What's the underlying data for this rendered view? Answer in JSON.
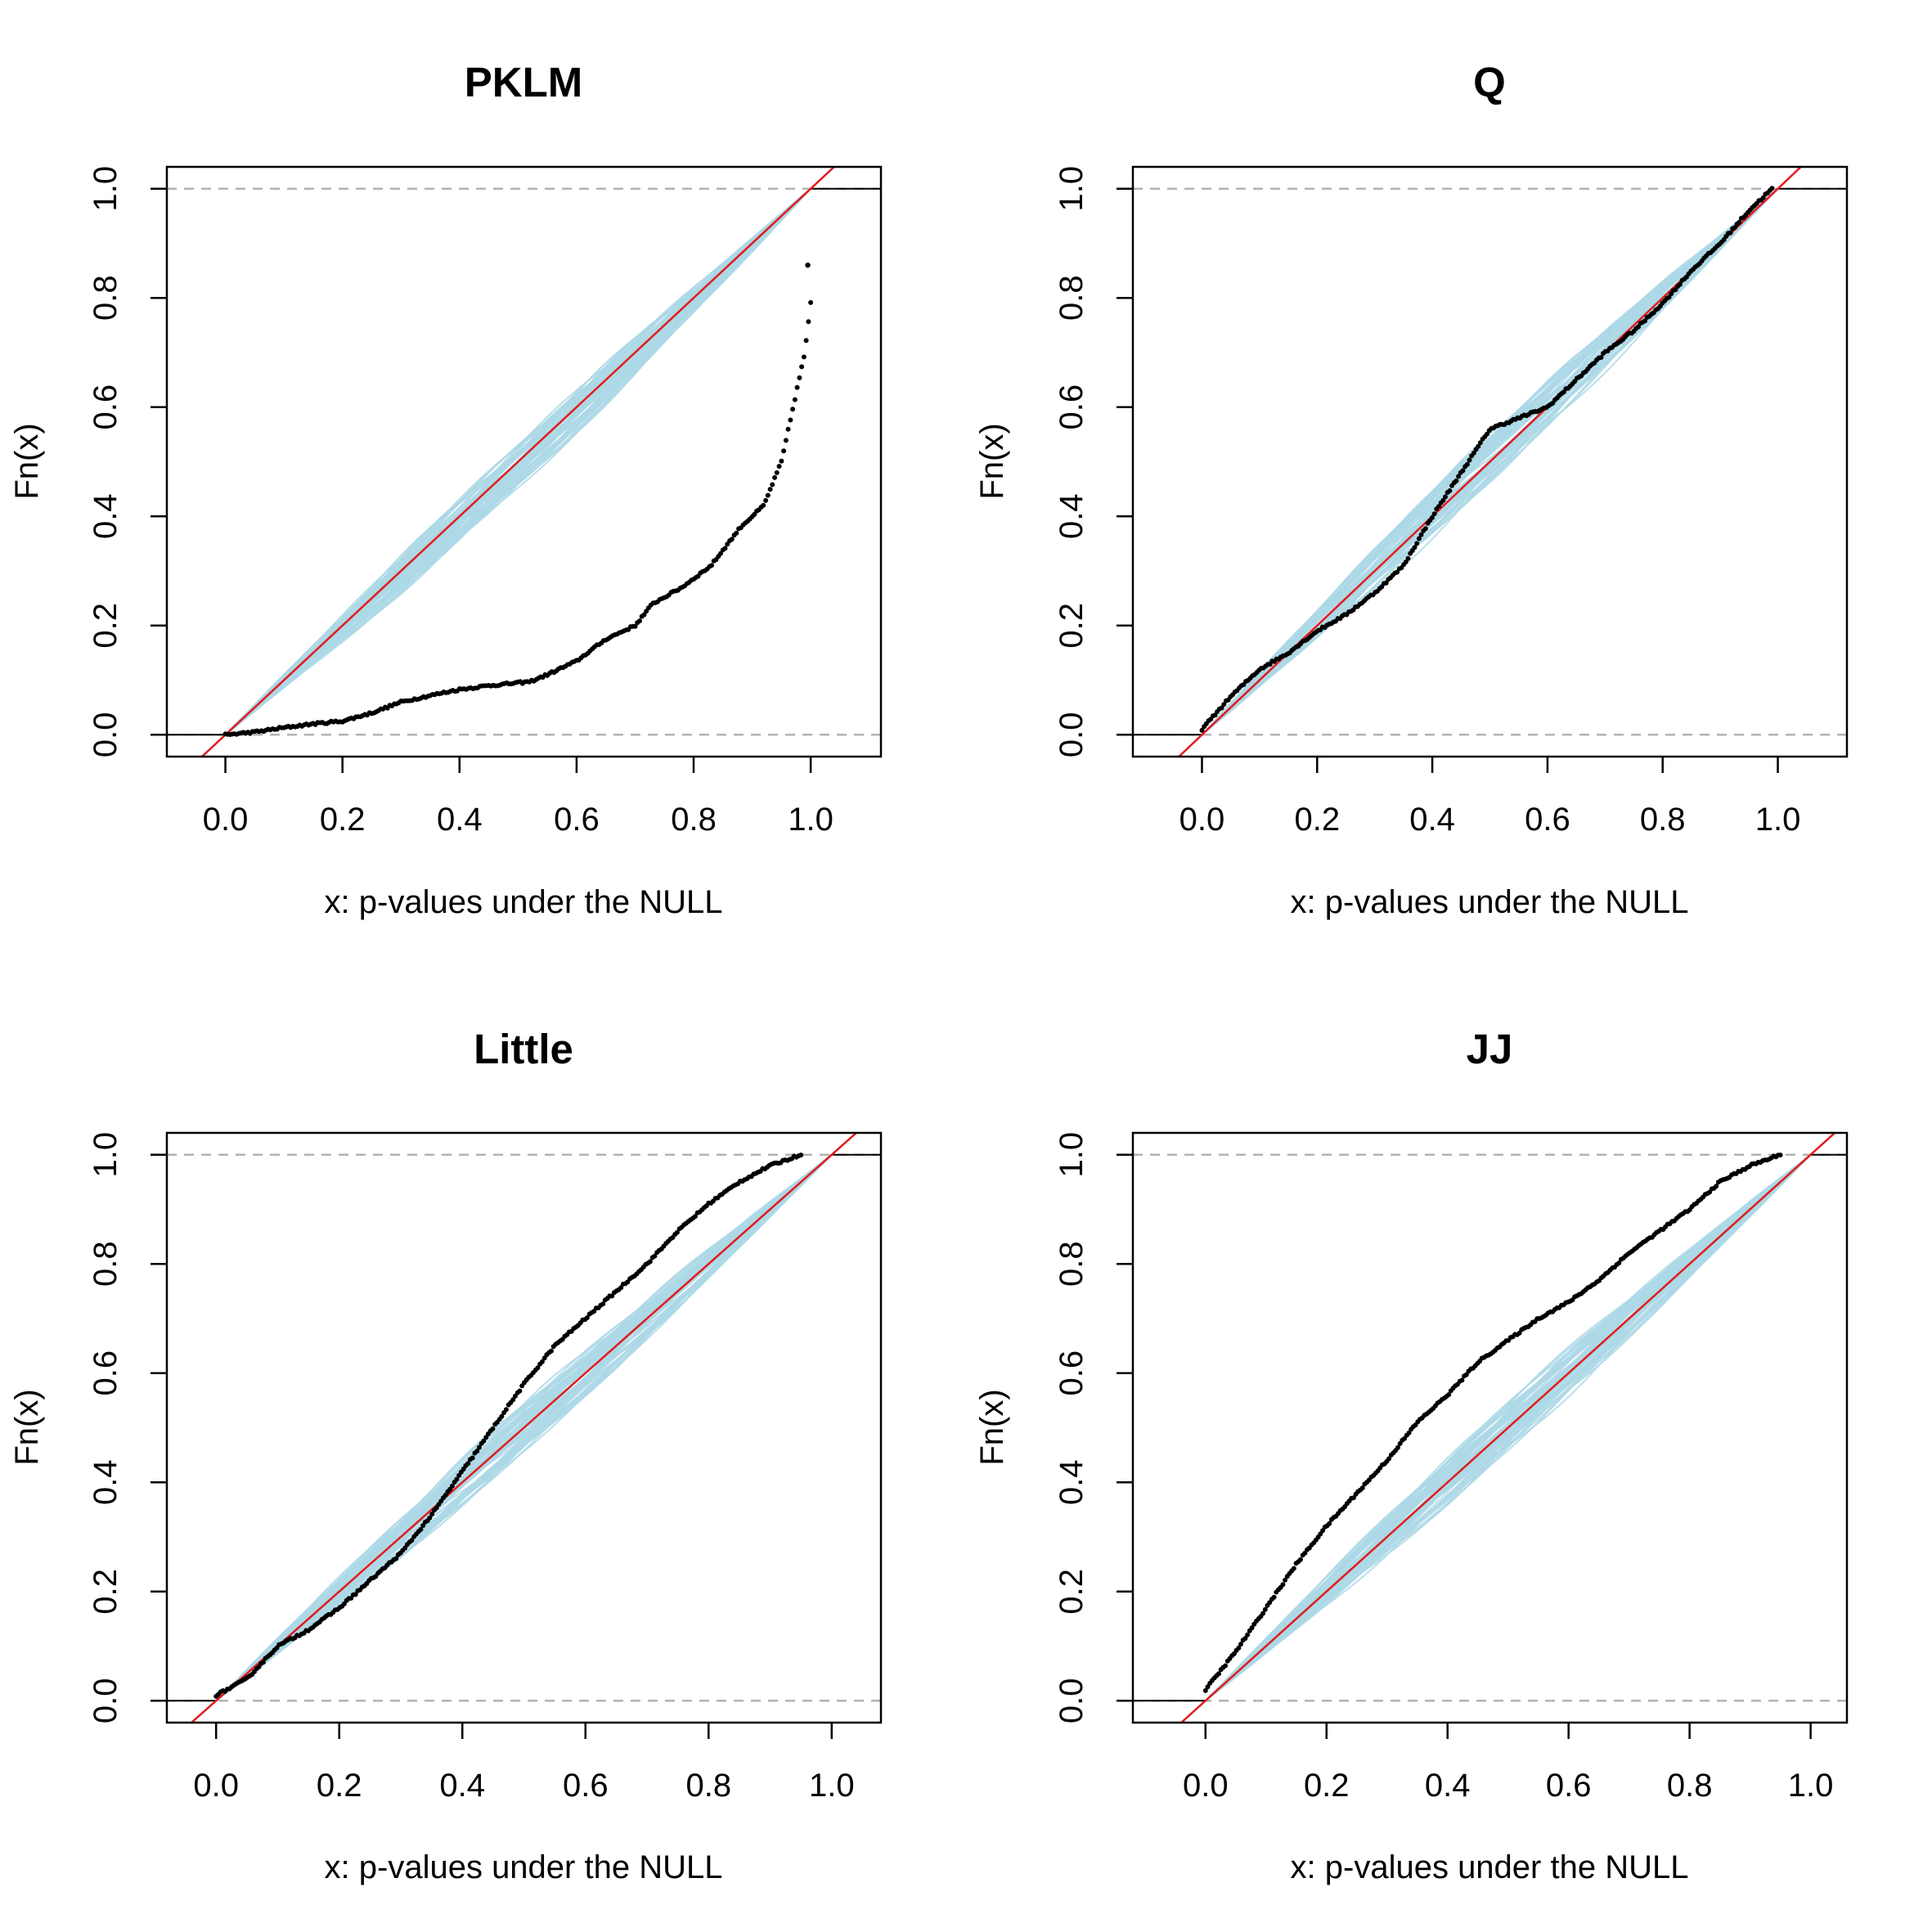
{
  "figure": {
    "background": "#ffffff"
  },
  "colors": {
    "envelope": "#add8e6",
    "reference": "#e31a1c",
    "observed": "#000000",
    "hline": "#b3b3b3",
    "axis": "#000000"
  },
  "chart_data": [
    {
      "type": "scatter",
      "title": "PKLM",
      "xlabel": "x: p-values under the NULL",
      "ylabel": "Fn(x)",
      "xlim": [
        -0.1,
        1.12
      ],
      "ylim": [
        -0.04,
        1.04
      ],
      "xticks": [
        "0.0",
        "0.2",
        "0.4",
        "0.6",
        "0.8",
        "1.0"
      ],
      "yticks": [
        "0.0",
        "0.2",
        "0.4",
        "0.6",
        "0.8",
        "1.0"
      ],
      "reference_line": "y = x",
      "hlines": [
        0,
        1
      ],
      "envelope": {
        "lower_offset": -0.045,
        "upper_offset": 0.03
      },
      "observed_ecdf": [
        [
          0.0,
          0.0
        ],
        [
          0.05,
          0.005
        ],
        [
          0.1,
          0.013
        ],
        [
          0.15,
          0.02
        ],
        [
          0.2,
          0.025
        ],
        [
          0.25,
          0.04
        ],
        [
          0.3,
          0.06
        ],
        [
          0.35,
          0.072
        ],
        [
          0.4,
          0.083
        ],
        [
          0.45,
          0.09
        ],
        [
          0.52,
          0.097
        ],
        [
          0.55,
          0.11
        ],
        [
          0.6,
          0.135
        ],
        [
          0.65,
          0.175
        ],
        [
          0.7,
          0.2
        ],
        [
          0.73,
          0.24
        ],
        [
          0.78,
          0.27
        ],
        [
          0.83,
          0.31
        ],
        [
          0.88,
          0.38
        ],
        [
          0.92,
          0.42
        ],
        [
          0.95,
          0.5
        ],
        [
          0.97,
          0.6
        ],
        [
          0.99,
          0.7
        ],
        [
          1.0,
          0.79
        ]
      ],
      "observed_extra_points": [
        [
          0.995,
          0.86
        ]
      ]
    },
    {
      "type": "scatter",
      "title": "Q",
      "xlabel": "x: p-values under the NULL",
      "ylabel": "Fn(x)",
      "xlim": [
        -0.12,
        1.12
      ],
      "ylim": [
        -0.04,
        1.04
      ],
      "xticks": [
        "0.0",
        "0.2",
        "0.4",
        "0.6",
        "0.8",
        "1.0"
      ],
      "yticks": [
        "0.0",
        "0.2",
        "0.4",
        "0.6",
        "0.8",
        "1.0"
      ],
      "reference_line": "y = x",
      "hlines": [
        0,
        1
      ],
      "envelope": {
        "lower_offset": -0.035,
        "upper_offset": 0.045
      },
      "observed_ecdf": [
        [
          0.0,
          0.01
        ],
        [
          0.05,
          0.07
        ],
        [
          0.1,
          0.12
        ],
        [
          0.15,
          0.15
        ],
        [
          0.2,
          0.19
        ],
        [
          0.25,
          0.22
        ],
        [
          0.3,
          0.26
        ],
        [
          0.35,
          0.31
        ],
        [
          0.4,
          0.4
        ],
        [
          0.45,
          0.48
        ],
        [
          0.5,
          0.56
        ],
        [
          0.55,
          0.58
        ],
        [
          0.6,
          0.6
        ],
        [
          0.65,
          0.65
        ],
        [
          0.7,
          0.7
        ],
        [
          0.75,
          0.74
        ],
        [
          0.8,
          0.79
        ],
        [
          0.85,
          0.85
        ],
        [
          0.9,
          0.9
        ],
        [
          0.95,
          0.96
        ],
        [
          0.99,
          1.0
        ]
      ]
    },
    {
      "type": "scatter",
      "title": "Little",
      "xlabel": "x: p-values under the NULL",
      "ylabel": "Fn(x)",
      "xlim": [
        -0.08,
        1.08
      ],
      "ylim": [
        -0.04,
        1.04
      ],
      "xticks": [
        "0.0",
        "0.2",
        "0.4",
        "0.6",
        "0.8",
        "1.0"
      ],
      "yticks": [
        "0.0",
        "0.2",
        "0.4",
        "0.6",
        "0.8",
        "1.0"
      ],
      "reference_line": "y = x",
      "hlines": [
        0,
        1
      ],
      "envelope": {
        "lower_offset": -0.04,
        "upper_offset": 0.04
      },
      "observed_ecdf": [
        [
          0.0,
          0.01
        ],
        [
          0.05,
          0.04
        ],
        [
          0.1,
          0.1
        ],
        [
          0.15,
          0.13
        ],
        [
          0.2,
          0.17
        ],
        [
          0.25,
          0.22
        ],
        [
          0.3,
          0.27
        ],
        [
          0.35,
          0.34
        ],
        [
          0.4,
          0.42
        ],
        [
          0.45,
          0.5
        ],
        [
          0.5,
          0.58
        ],
        [
          0.55,
          0.65
        ],
        [
          0.6,
          0.7
        ],
        [
          0.65,
          0.75
        ],
        [
          0.7,
          0.8
        ],
        [
          0.75,
          0.86
        ],
        [
          0.8,
          0.91
        ],
        [
          0.85,
          0.95
        ],
        [
          0.9,
          0.98
        ],
        [
          0.95,
          1.0
        ]
      ]
    },
    {
      "type": "scatter",
      "title": "JJ",
      "xlabel": "x: p-values under the NULL",
      "ylabel": "Fn(x)",
      "xlim": [
        -0.12,
        1.06
      ],
      "ylim": [
        -0.04,
        1.04
      ],
      "xticks": [
        "0.0",
        "0.2",
        "0.4",
        "0.6",
        "0.8",
        "1.0"
      ],
      "yticks": [
        "0.0",
        "0.2",
        "0.4",
        "0.6",
        "0.8",
        "1.0"
      ],
      "reference_line": "y = x",
      "hlines": [
        0,
        1
      ],
      "envelope": {
        "lower_offset": -0.035,
        "upper_offset": 0.045
      },
      "observed_ecdf": [
        [
          0.0,
          0.02
        ],
        [
          0.05,
          0.09
        ],
        [
          0.1,
          0.17
        ],
        [
          0.15,
          0.25
        ],
        [
          0.2,
          0.32
        ],
        [
          0.25,
          0.38
        ],
        [
          0.3,
          0.44
        ],
        [
          0.35,
          0.51
        ],
        [
          0.4,
          0.56
        ],
        [
          0.45,
          0.62
        ],
        [
          0.5,
          0.66
        ],
        [
          0.55,
          0.7
        ],
        [
          0.6,
          0.73
        ],
        [
          0.65,
          0.77
        ],
        [
          0.7,
          0.82
        ],
        [
          0.75,
          0.86
        ],
        [
          0.8,
          0.9
        ],
        [
          0.85,
          0.95
        ],
        [
          0.9,
          0.98
        ],
        [
          0.95,
          1.0
        ]
      ]
    }
  ]
}
